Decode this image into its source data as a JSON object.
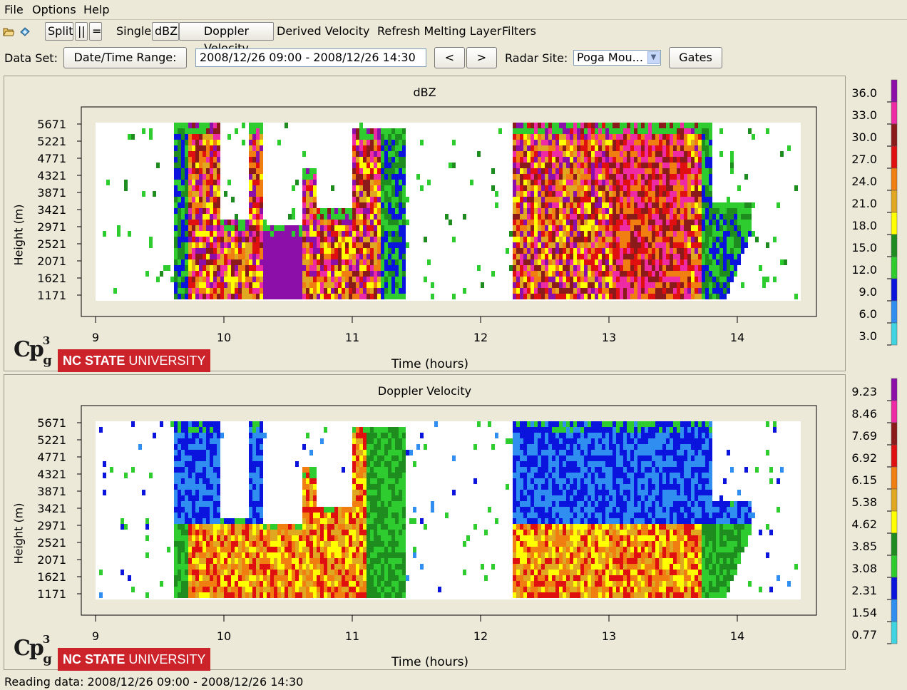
{
  "menubar": {
    "items": [
      "File",
      "Options",
      "Help"
    ]
  },
  "toolbar": {
    "open_icon": "open-folder-icon",
    "save_icon": "save-icon",
    "split": "Split",
    "vertical_split": "||",
    "horizontal_split": "=",
    "single": "Single",
    "dbz": "dBZ",
    "doppler": "Doppler Velocity",
    "derived": "Derived Velocity",
    "refresh": "Refresh Melting Layer",
    "filters": "Filters"
  },
  "dataset": {
    "label": "Data Set:",
    "range_button": "Date/Time Range:",
    "range_value": "2008/12/26 09:00 - 2008/12/26 14:30",
    "prev": "<",
    "next": ">",
    "site_label": "Radar Site:",
    "site_value": "Poga Mou...",
    "gates": "Gates"
  },
  "panels": [
    {
      "title": "dBZ",
      "ylabel": "Height (m)",
      "xlabel": "Time (hours)",
      "yticks": [
        "5671",
        "5221",
        "4771",
        "4321",
        "3871",
        "3421",
        "2971",
        "2521",
        "2071",
        "1621",
        "1171"
      ],
      "xticks": [
        "9",
        "10",
        "11",
        "12",
        "13",
        "14"
      ],
      "legend": [
        "36.0",
        "33.0",
        "30.0",
        "27.0",
        "24.0",
        "21.0",
        "18.0",
        "15.0",
        "12.0",
        "9.0",
        "6.0",
        "3.0"
      ]
    },
    {
      "title": "Doppler Velocity",
      "ylabel": "Height (m)",
      "xlabel": "Time (hours)",
      "yticks": [
        "5671",
        "5221",
        "4771",
        "4321",
        "3871",
        "3421",
        "2971",
        "2521",
        "2071",
        "1621",
        "1171"
      ],
      "xticks": [
        "9",
        "10",
        "11",
        "12",
        "13",
        "14"
      ],
      "legend": [
        "9.23",
        "8.46",
        "7.69",
        "6.92",
        "6.15",
        "5.38",
        "4.62",
        "3.85",
        "3.08",
        "2.31",
        "1.54",
        "0.77"
      ]
    }
  ],
  "logo": {
    "cp": "Cp",
    "cp_sup": "3",
    "cp_sub": "g",
    "ncsu_bold": "NC STATE",
    "ncsu_rest": " UNIVERSITY"
  },
  "colors": {
    "scale": [
      "#8b0fa8",
      "#ee2aa5",
      "#8b1a1a",
      "#e01010",
      "#f07e10",
      "#e0a820",
      "#ffff00",
      "#1e8c1e",
      "#2ecc2e",
      "#0a14dc",
      "#2f8ef0",
      "#40d4e0"
    ]
  },
  "status": "Reading data: 2008/12/26 09:00 - 2008/12/26 14:30"
}
